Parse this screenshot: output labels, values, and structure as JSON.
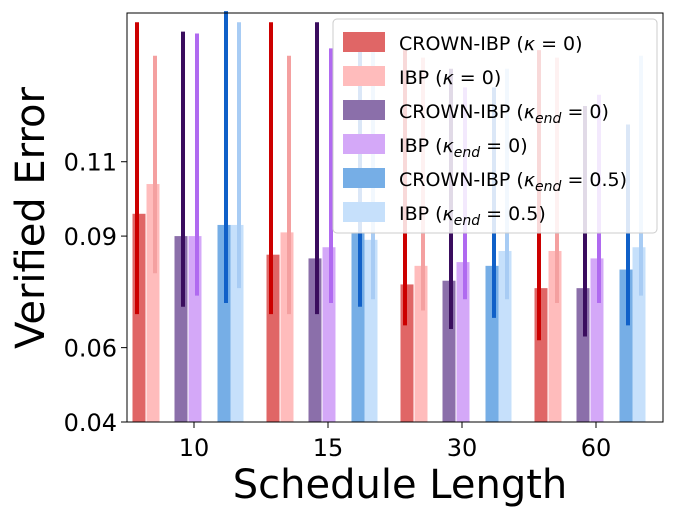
{
  "chart_data": {
    "type": "bar",
    "xlabel": "Schedule Length",
    "ylabel": "Verified Error",
    "categories": [
      "10",
      "15",
      "30",
      "60"
    ],
    "yticks": [
      0.04,
      0.06,
      0.09,
      0.11
    ],
    "ytick_labels": [
      "0.04",
      "0.06",
      "0.09",
      "0.11"
    ],
    "ylim": [
      0.04,
      0.15
    ],
    "grid": false,
    "legend_position": "top-right",
    "series": [
      {
        "name": "CROWN-IBP (κ = 0)",
        "color": "#e06666",
        "error_color": "#cc0000",
        "values": [
          0.096,
          0.085,
          0.077,
          0.076
        ],
        "err_low": [
          0.069,
          0.069,
          0.066,
          0.062
        ],
        "err_high": [
          0.1475,
          0.1475,
          0.14,
          0.14
        ]
      },
      {
        "name": "IBP (κ = 0)",
        "color": "#ffbcbc",
        "error_color": "#f4a0a0",
        "values": [
          0.104,
          0.091,
          0.082,
          0.086
        ],
        "err_low": [
          0.08,
          0.069,
          0.07,
          0.072
        ],
        "err_high": [
          0.1385,
          0.1385,
          0.138,
          0.138
        ]
      },
      {
        "name": "CROWN-IBP (κ_end = 0)",
        "color": "#8b6faa",
        "error_color": "#3a0d5e",
        "values": [
          0.09,
          0.084,
          0.078,
          0.076
        ],
        "err_low": [
          0.071,
          0.069,
          0.065,
          0.063
        ],
        "err_high": [
          0.145,
          0.1475,
          0.135,
          0.125
        ]
      },
      {
        "name": "IBP (κ_end = 0)",
        "color": "#d4a8f8",
        "error_color": "#b06af0",
        "values": [
          0.09,
          0.087,
          0.083,
          0.084
        ],
        "err_low": [
          0.074,
          0.072,
          0.073,
          0.072
        ],
        "err_high": [
          0.1445,
          0.1405,
          0.13,
          0.128
        ]
      },
      {
        "name": "CROWN-IBP (κ_end = 0.5)",
        "color": "#76aee6",
        "error_color": "#1060c8",
        "values": [
          0.093,
          0.091,
          0.082,
          0.081
        ],
        "err_low": [
          0.072,
          0.071,
          0.068,
          0.066
        ],
        "err_high": [
          0.1505,
          0.1425,
          0.13,
          0.12
        ]
      },
      {
        "name": "IBP (κ_end = 0.5)",
        "color": "#c6e0fb",
        "error_color": "#a8ccf4",
        "values": [
          0.093,
          0.089,
          0.086,
          0.087
        ],
        "err_low": [
          0.076,
          0.073,
          0.073,
          0.074
        ],
        "err_high": [
          0.1475,
          0.14,
          0.135,
          0.1385
        ]
      }
    ]
  },
  "legend": [
    {
      "prefix": "CROWN-IBP (",
      "sym": "κ",
      "sub": "",
      "rest": " = 0",
      "suffix": ")"
    },
    {
      "prefix": "IBP (",
      "sym": "κ",
      "sub": "",
      "rest": " = 0",
      "suffix": ")"
    },
    {
      "prefix": "CROWN-IBP (",
      "sym": "κ",
      "sub": "end",
      "rest": " = 0",
      "suffix": ")"
    },
    {
      "prefix": "IBP (",
      "sym": "κ",
      "sub": "end",
      "rest": " = 0",
      "suffix": ")"
    },
    {
      "prefix": "CROWN-IBP (",
      "sym": "κ",
      "sub": "end",
      "rest": " = 0.5",
      "suffix": ")"
    },
    {
      "prefix": "IBP (",
      "sym": "κ",
      "sub": "end",
      "rest": " = 0.5",
      "suffix": ")"
    }
  ]
}
